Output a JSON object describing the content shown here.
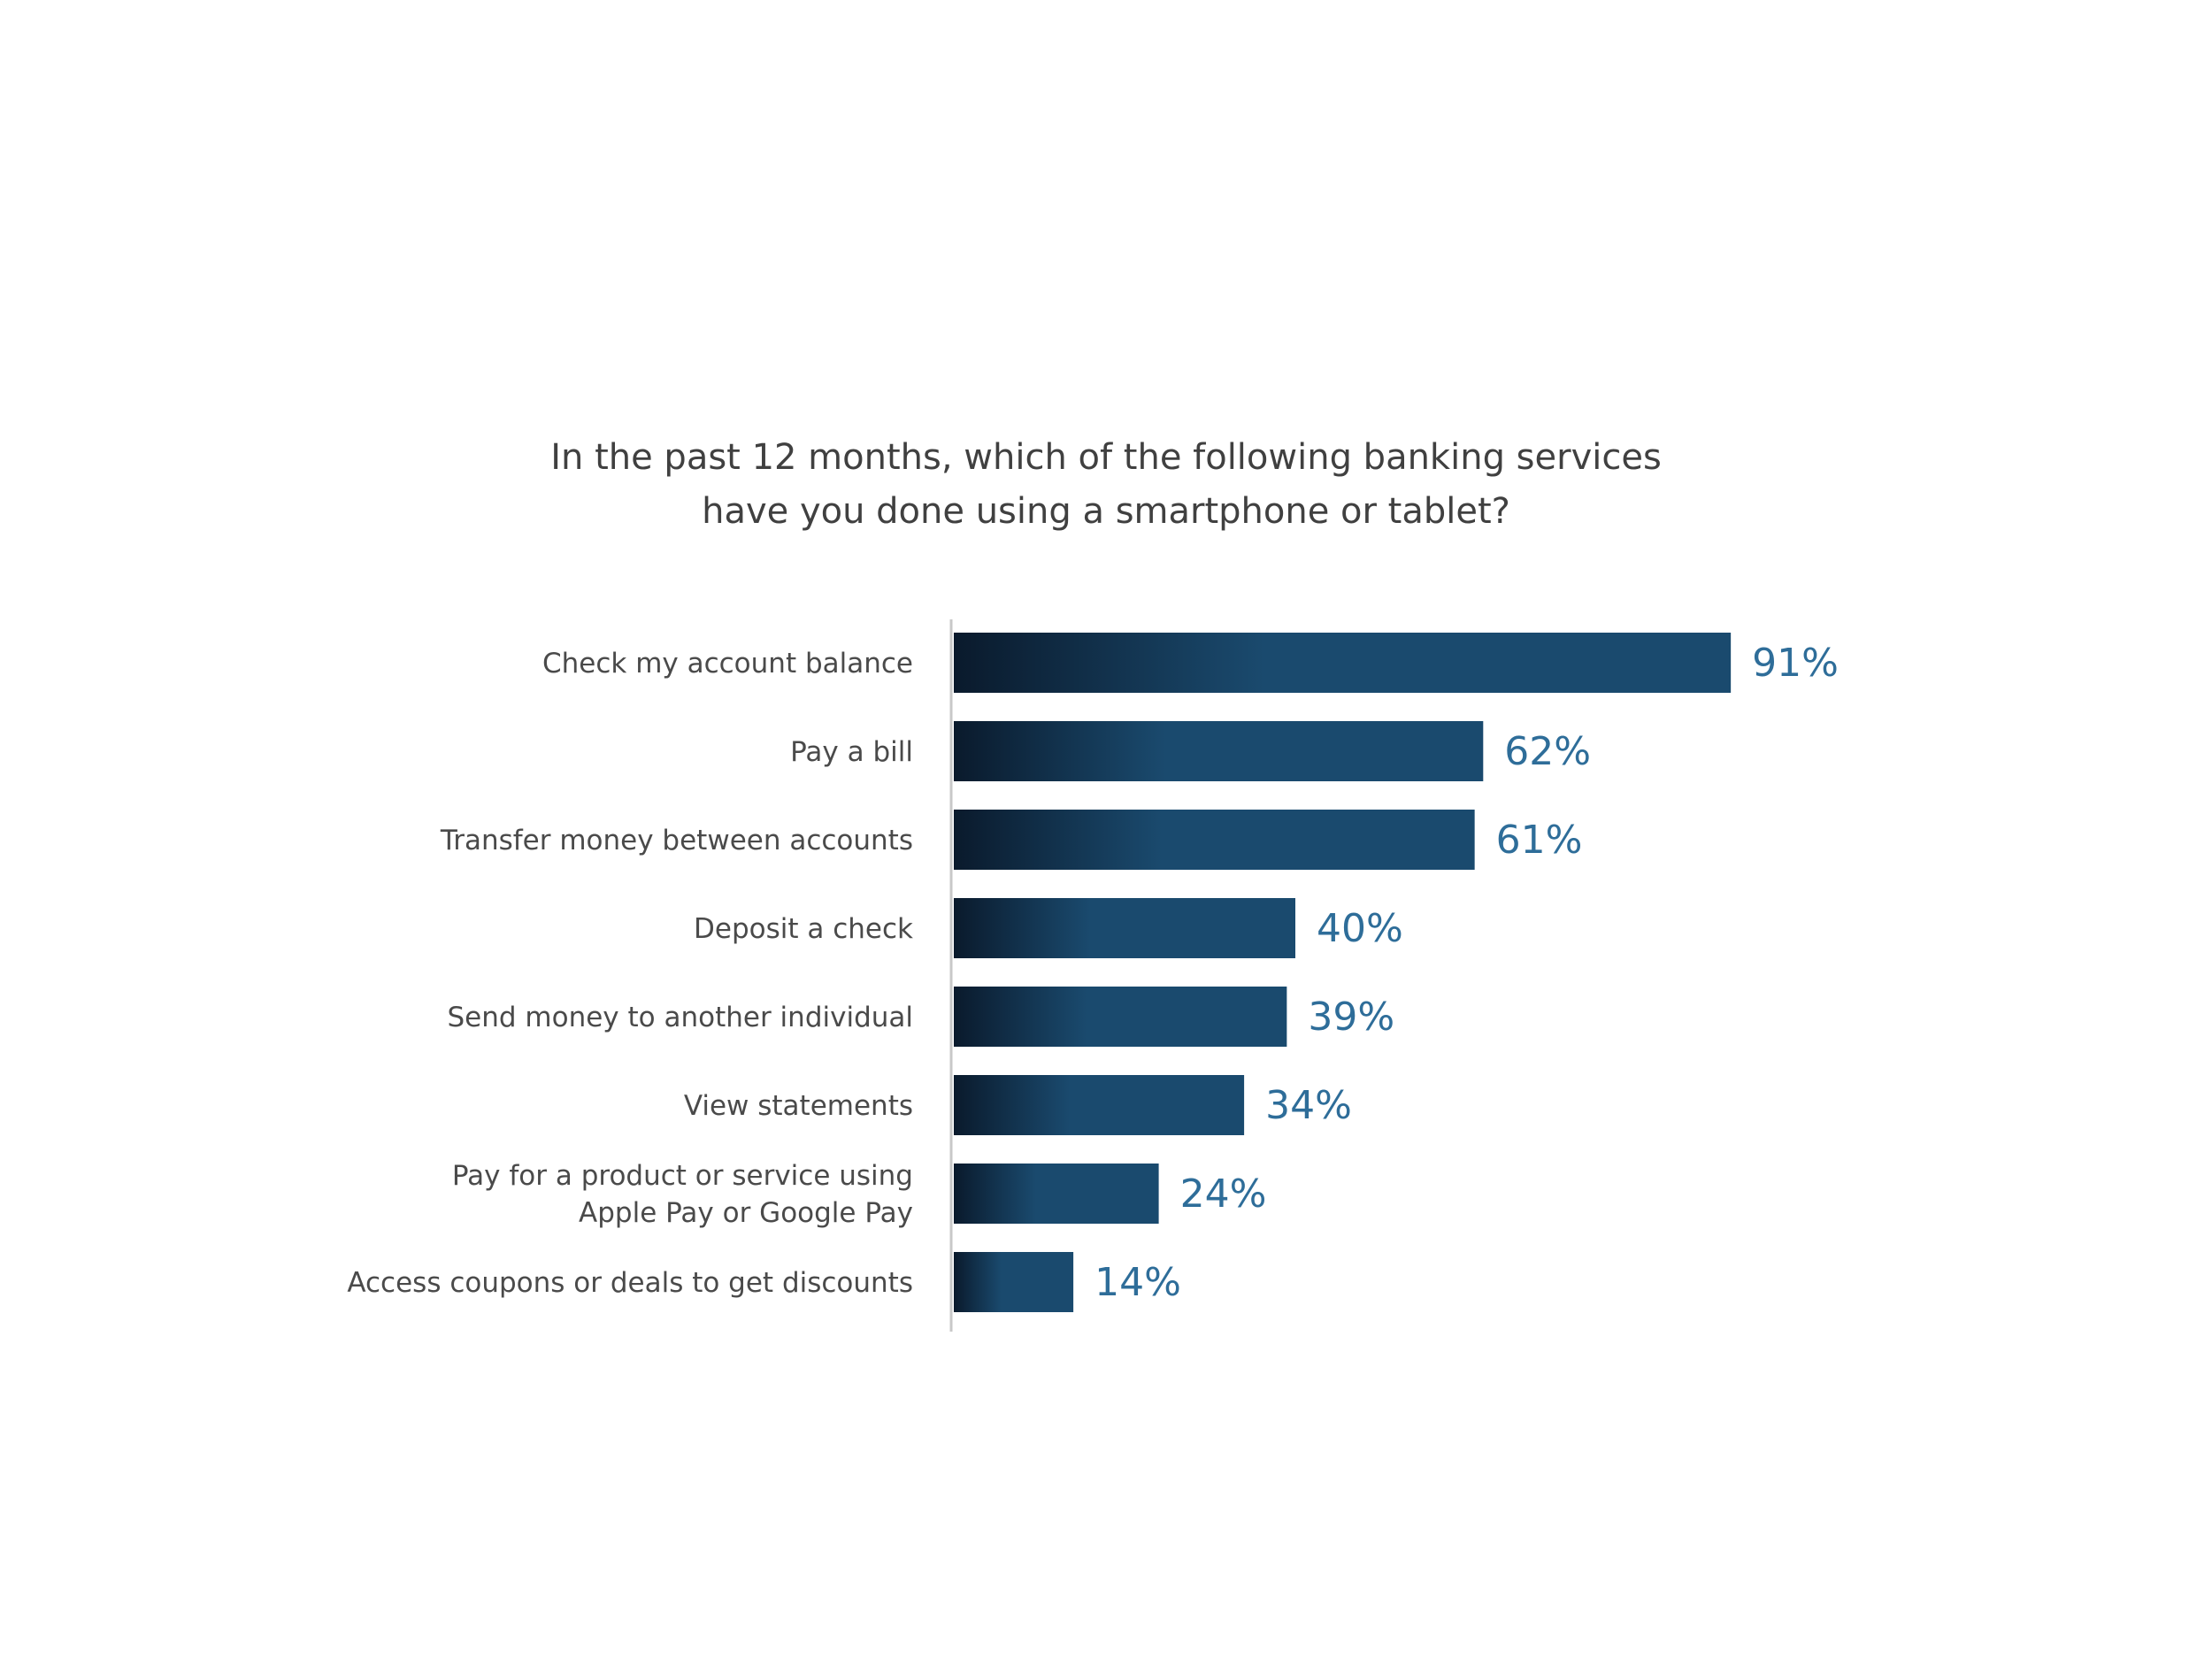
{
  "chart_data": {
    "type": "bar",
    "orientation": "horizontal",
    "title_lines": [
      "In the past 12 months, which of the following banking services",
      "have you done using a smartphone or tablet?"
    ],
    "categories": [
      [
        "Check my account balance"
      ],
      [
        "Pay a bill"
      ],
      [
        "Transfer money between accounts"
      ],
      [
        "Deposit a check"
      ],
      [
        "Send money to another individual"
      ],
      [
        "View statements"
      ],
      [
        "Pay for a product or service using",
        "Apple Pay or Google Pay"
      ],
      [
        "Access coupons or deals to get discounts"
      ]
    ],
    "values": [
      91,
      62,
      61,
      40,
      39,
      34,
      24,
      14
    ],
    "value_labels": [
      "91%",
      "62%",
      "61%",
      "40%",
      "39%",
      "34%",
      "24%",
      "14%"
    ],
    "unit": "%",
    "xlim": [
      0,
      100
    ],
    "grid": false,
    "colors": {
      "bar_dark": "#0a1a2c",
      "bar_light": "#1a4a6e",
      "value_text": "#2e6d99",
      "label_text": "#4a4a4a",
      "axis": "#c8c8c8"
    }
  }
}
